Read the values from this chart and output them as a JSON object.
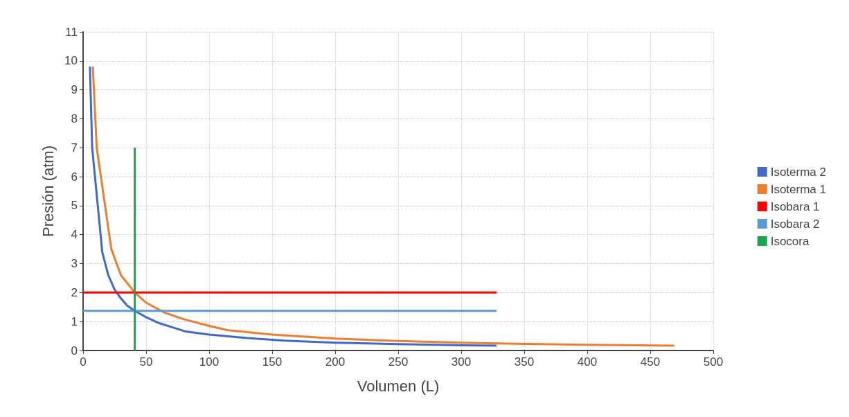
{
  "chart_data": {
    "type": "line",
    "xlabel": "Volumen (L)",
    "ylabel": "Presión (atm)",
    "xlim": [
      0,
      500
    ],
    "xticks": [
      0,
      50,
      100,
      150,
      200,
      250,
      300,
      350,
      400,
      450,
      500
    ],
    "ylim": [
      0,
      11
    ],
    "yticks": [
      0,
      1,
      2,
      3,
      4,
      5,
      6,
      7,
      8,
      9,
      10,
      11
    ],
    "grid": true,
    "legend": "right",
    "marker": "none",
    "line_style": "solid",
    "series": [
      {
        "name": "Isoterma 2",
        "color": "#4169c8",
        "x": [
          5.4,
          7.2,
          15.2,
          20,
          25,
          30,
          35,
          41,
          50,
          60,
          81,
          100,
          130,
          160,
          200,
          250,
          300,
          328
        ],
        "values": [
          9.8,
          7.0,
          3.4,
          2.6,
          2.1,
          1.8,
          1.55,
          1.37,
          1.15,
          0.95,
          0.66,
          0.55,
          0.43,
          0.34,
          0.27,
          0.22,
          0.18,
          0.17
        ]
      },
      {
        "name": "Isoterma 1",
        "color": "#ed7d31",
        "x": [
          7.7,
          10.8,
          22.4,
          30,
          41,
          50,
          65,
          80,
          100,
          115,
          150,
          200,
          250,
          300,
          350,
          400,
          469
        ],
        "values": [
          9.8,
          7.0,
          3.5,
          2.6,
          2.0,
          1.65,
          1.3,
          1.08,
          0.85,
          0.7,
          0.55,
          0.41,
          0.33,
          0.27,
          0.23,
          0.2,
          0.17
        ]
      },
      {
        "name": "Isobara 1",
        "color": "#ff0000",
        "x": [
          0,
          328
        ],
        "values": [
          2,
          2
        ]
      },
      {
        "name": "Isobara 2",
        "color": "#5b9bd5",
        "x": [
          0,
          328
        ],
        "values": [
          1.37,
          1.37
        ]
      },
      {
        "name": "Isocora",
        "color": "#16a84a",
        "x": [
          41,
          41
        ],
        "values": [
          0,
          7
        ]
      }
    ]
  }
}
